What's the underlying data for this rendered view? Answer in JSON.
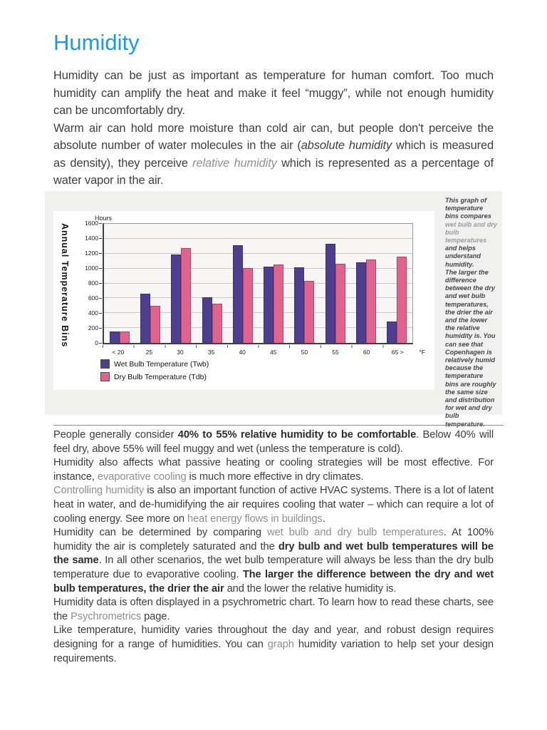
{
  "page": {
    "title": "Humidity",
    "title_color": "#2199d6",
    "link_color": "#8f8f8f"
  },
  "intro_paragraphs": [
    {
      "segments": [
        {
          "text": "Humidity can be just as important as temperature for human comfort.  Too much humidity can amplify the heat and make it feel “muggy”, while not enough humidity can be uncomfortably dry."
        }
      ]
    },
    {
      "segments": [
        {
          "text": "Warm air can hold more moisture than cold air can, but people don't perceive the absolute number of water molecules in the air ("
        },
        {
          "text": "absolute humidity",
          "style": "italic"
        },
        {
          "text": " which is measured as density), they perceive "
        },
        {
          "text": "relative humidity",
          "style": "italic link"
        },
        {
          "text": " which is represented as a percentage of water vapor in the air."
        }
      ]
    }
  ],
  "figure": {
    "chart_data": {
      "type": "bar",
      "axis_title_left": "Annual Temperature Bins",
      "y_axis_label": "Hours",
      "unit_suffix": "°F",
      "categories": [
        "< 20",
        "25",
        "30",
        "35",
        "40",
        "45",
        "50",
        "55",
        "60",
        "65 >"
      ],
      "series": [
        {
          "name": "Wet Bulb Temperature (Twb)",
          "color": "#4d3f8e",
          "values": [
            155,
            665,
            1190,
            610,
            1310,
            1025,
            1020,
            1330,
            1080,
            290
          ]
        },
        {
          "name": "Dry Bulb Temperature (Tdb)",
          "color": "#e2648e",
          "values": [
            150,
            500,
            1270,
            525,
            1010,
            1050,
            830,
            1065,
            1120,
            1160
          ]
        }
      ],
      "ylim": [
        0,
        1600
      ],
      "y_ticks": [
        0,
        200,
        400,
        600,
        800,
        1000,
        1200,
        1400,
        1600
      ],
      "grid": "horizontal",
      "legend_position": "bottom-left"
    },
    "note_paragraphs": [
      [
        {
          "text": "This graph of temperature bins compares "
        },
        {
          "text": "wet bulb and dry bulb temperatures",
          "style": "link"
        },
        {
          "text": " and helps understand humidity."
        }
      ],
      [
        {
          "text": "The larger the difference between the dry and wet bulb temperatures, the drier the air and the lower the relative humidity is. You can see that Copenhagen is relatively humid because the temperature bins are roughly the same size and distribution for wet and dry bulb temperature."
        }
      ]
    ]
  },
  "body_paragraphs": [
    {
      "segments": [
        {
          "text": "People generally consider "
        },
        {
          "text": "40% to 55% relative humidity to be comfortable",
          "style": "bold"
        },
        {
          "text": ".  Below 40% will feel dry, above 55% will feel muggy and wet (unless the temperature is cold)."
        }
      ]
    },
    {
      "segments": [
        {
          "text": "Humidity also affects what passive heating or cooling strategies will be most effective.  For instance, "
        },
        {
          "text": "evaporative cooling",
          "style": "link"
        },
        {
          "text": " is much more effective in dry climates."
        }
      ]
    },
    {
      "segments": [
        {
          "text": "Controlling humidity",
          "style": "link"
        },
        {
          "text": " is also an important function of active HVAC systems. There is a lot of latent heat in water, and de-humidifying the air requires cooling that water – which can require a lot of cooling energy. See more on "
        },
        {
          "text": "heat energy flows in buildings",
          "style": "link"
        },
        {
          "text": "."
        }
      ]
    },
    {
      "segments": [
        {
          "text": "Humidity can be determined by comparing "
        },
        {
          "text": "wet bulb and dry bulb temperatures",
          "style": "link"
        },
        {
          "text": ". At 100% humidity the air is completely saturated and the "
        },
        {
          "text": "dry bulb and wet bulb temperatures will be the same",
          "style": "bold"
        },
        {
          "text": ". In all other scenarios, the wet bulb temperature will always be less than the dry bulb temperature due to evaporative cooling. "
        },
        {
          "text": "The larger the difference between the dry and wet bulb temperatures, the drier the air",
          "style": "bold"
        },
        {
          "text": " and the lower the relative humidity is."
        }
      ]
    },
    {
      "segments": [
        {
          "text": "Humidity data is often displayed in a psychrometric chart. To learn how to read these charts, see the "
        },
        {
          "text": "Psychrometrics",
          "style": "link"
        },
        {
          "text": " page."
        }
      ]
    },
    {
      "segments": [
        {
          "text": "Like temperature, humidity varies throughout the day and year, and robust design requires designing for a range of humidities.  You can "
        },
        {
          "text": "graph",
          "style": "link"
        },
        {
          "text": " humidity variation to help set your design requirements."
        }
      ]
    }
  ]
}
